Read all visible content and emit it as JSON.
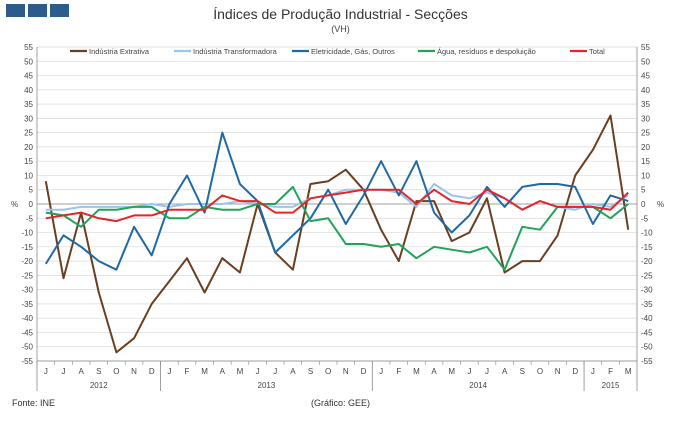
{
  "header": {
    "title": "Índices de Produção Industrial - Secções",
    "subtitle": "(VH)"
  },
  "footer": {
    "source": "Fonte: INE",
    "credit": "(Gráfico: GEE)"
  },
  "colors": {
    "brand_logo": "#2d5b8c",
    "grid": "#d9d9d9",
    "axis": "#444444"
  },
  "chart_data": {
    "type": "line",
    "y_unit_label": "%",
    "ylim": [
      -55,
      55
    ],
    "y_ticks": [
      -55,
      -50,
      -45,
      -40,
      -35,
      -30,
      -25,
      -20,
      -15,
      -10,
      -5,
      0,
      5,
      10,
      15,
      20,
      25,
      30,
      35,
      40,
      45,
      50,
      55
    ],
    "grid": true,
    "legend_position": "top",
    "months": [
      "J",
      "J",
      "A",
      "S",
      "O",
      "N",
      "D",
      "J",
      "F",
      "M",
      "A",
      "M",
      "J",
      "J",
      "A",
      "S",
      "O",
      "N",
      "D",
      "J",
      "F",
      "M",
      "A",
      "M",
      "J",
      "J",
      "A",
      "S",
      "O",
      "N",
      "D",
      "J",
      "F",
      "M"
    ],
    "years": [
      {
        "label": "2012",
        "start": 0,
        "end": 6
      },
      {
        "label": "2013",
        "start": 7,
        "end": 18
      },
      {
        "label": "2014",
        "start": 19,
        "end": 30
      },
      {
        "label": "2015",
        "start": 31,
        "end": 33
      }
    ],
    "series": [
      {
        "name": "Indústria Extrativa",
        "color": "#6b3e1f",
        "values": [
          8,
          -26,
          -3,
          -31,
          -52,
          -47,
          -35,
          -27,
          -19,
          -31,
          -19,
          -24,
          0,
          -17,
          -23,
          7,
          8,
          12,
          5,
          -9,
          -20,
          1,
          1,
          -13,
          -10,
          2,
          -24,
          -20,
          -20,
          -11,
          10,
          19,
          31,
          -9
        ]
      },
      {
        "name": "Indústria Transformadora",
        "color": "#99c6e8",
        "values": [
          -2,
          -2,
          -1,
          -1,
          -1,
          -1,
          0,
          -1,
          0,
          0,
          0,
          1,
          0,
          -1,
          -1,
          2,
          3,
          5,
          5,
          5,
          4,
          -1,
          7,
          3,
          2,
          4,
          2,
          -2,
          1,
          -1,
          -2,
          0,
          -1,
          3
        ]
      },
      {
        "name": "Eletricidade, Gás, Outros",
        "color": "#1f6aa5",
        "values": [
          -21,
          -11,
          -15,
          -20,
          -23,
          -8,
          -18,
          0,
          10,
          -3,
          25,
          7,
          1,
          -17,
          -11,
          -5,
          5,
          -7,
          3,
          15,
          3,
          15,
          -3,
          -10,
          -4,
          6,
          -1,
          6,
          7,
          7,
          6,
          -7,
          3,
          1
        ]
      },
      {
        "name": "Água, resíduos e despoluição",
        "color": "#22a35b",
        "values": [
          -3,
          -4,
          -8,
          -2,
          -2,
          -1,
          -1,
          -5,
          -5,
          -1,
          -2,
          -2,
          0,
          0,
          6,
          -6,
          -5,
          -14,
          -14,
          -15,
          -14,
          -19,
          -15,
          -16,
          -17,
          -15,
          -23,
          -8,
          -9,
          -1,
          -1,
          -1,
          -5,
          0
        ]
      },
      {
        "name": "Total",
        "color": "#e2262b",
        "values": [
          -5,
          -4,
          -3,
          -5,
          -6,
          -4,
          -4,
          -2,
          -2,
          -2,
          3,
          1,
          1,
          -3,
          -3,
          2,
          3,
          4,
          5,
          5,
          5,
          0,
          5,
          1,
          0,
          5,
          2,
          -2,
          1,
          -1,
          -1,
          -1,
          -2,
          4
        ]
      }
    ]
  }
}
